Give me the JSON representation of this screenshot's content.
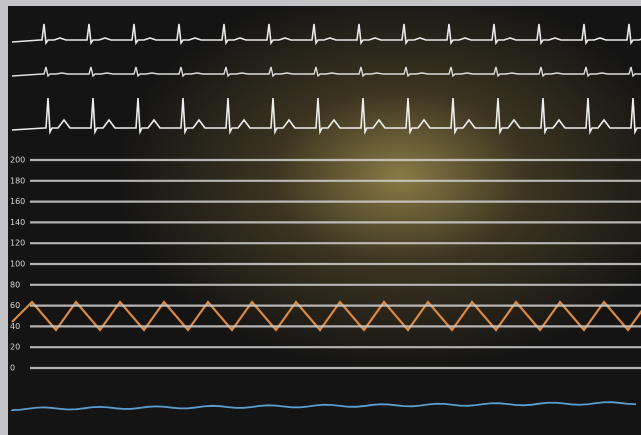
{
  "pressure_scale": {
    "labels": [
      "200",
      "180",
      "160",
      "140",
      "120",
      "100",
      "80",
      "60",
      "40",
      "20",
      "0"
    ]
  }
}
